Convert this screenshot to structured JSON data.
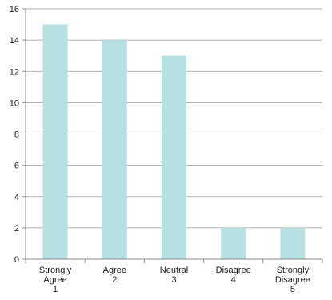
{
  "chart_data": {
    "type": "bar",
    "categories": [
      [
        "Strongly",
        "Agree",
        "1"
      ],
      [
        "Agree",
        "2"
      ],
      [
        "Neutral",
        "3"
      ],
      [
        "Disagree",
        "4"
      ],
      [
        "Strongly",
        "Disagree",
        "5"
      ]
    ],
    "values": [
      15,
      14,
      13,
      2,
      2
    ],
    "ylim": [
      0,
      16
    ],
    "yticks": [
      0,
      2,
      4,
      6,
      8,
      10,
      12,
      14,
      16
    ],
    "grid": true,
    "legend": "none",
    "title": "",
    "xlabel": "",
    "ylabel": "",
    "colors": {
      "bar": "#b7e0e3",
      "grid": "#999999",
      "axis": "#888888"
    }
  }
}
